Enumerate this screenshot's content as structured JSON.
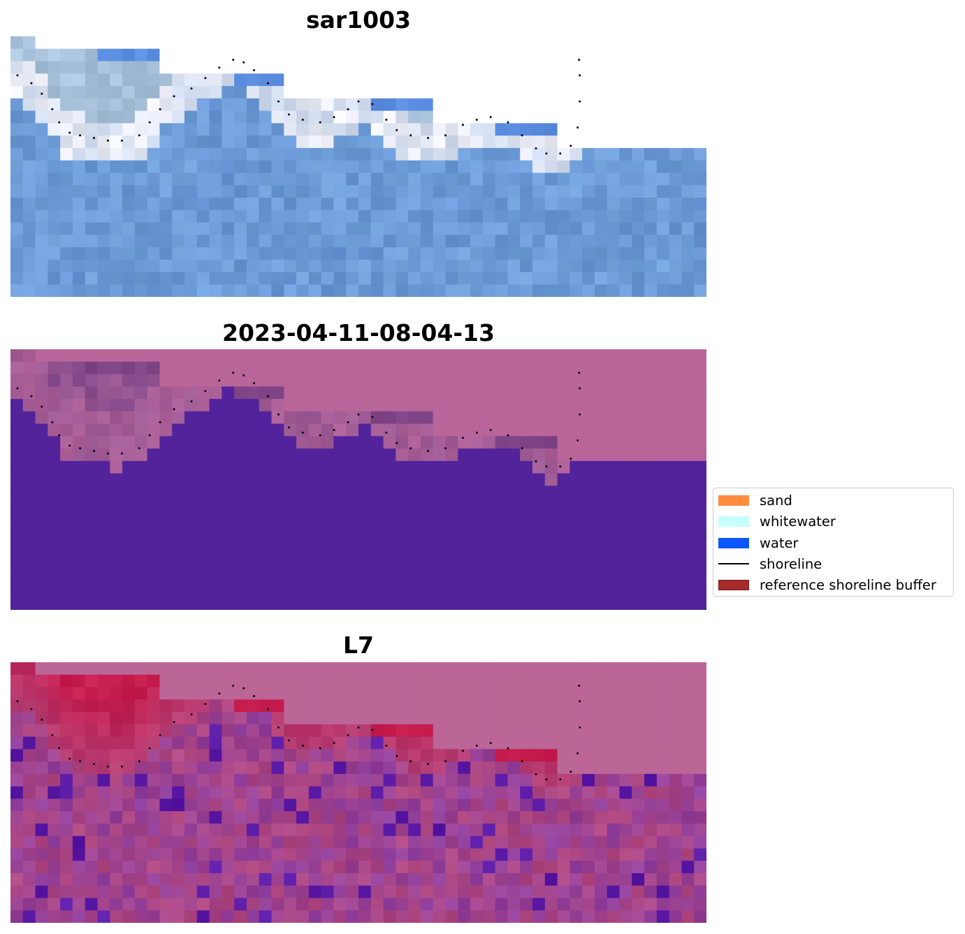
{
  "chart_data": [
    {
      "type": "heatmap",
      "title": "sar1003",
      "layer": "rgb-image",
      "palette": {
        "sky": "#a8c2db",
        "pale": "#c9d6ea",
        "white": "#f3f3fb",
        "water": "#6f9fd8",
        "deep": "#6a97d6",
        "bright_blue": "#5b8ee0",
        "nodata": "#ffffff"
      }
    },
    {
      "type": "heatmap",
      "title": "2023-04-11-08-04-13",
      "layer": "classification-overlay",
      "palette": {
        "land": "#b9659a",
        "mixed": "#9c5a94",
        "dark": "#7f4587",
        "water": "#52239b"
      }
    },
    {
      "type": "heatmap",
      "title": "L7",
      "layer": "index-overlay",
      "palette": {
        "top": "#bc6597",
        "red": "#c41d4e",
        "magenta": "#b1487f",
        "purple": "#8f3f9e",
        "violet": "#5a1aa6"
      }
    }
  ],
  "shoreline": {
    "color": "#000000",
    "points": [
      [
        0.01,
        0.15
      ],
      [
        0.03,
        0.18
      ],
      [
        0.045,
        0.22
      ],
      [
        0.06,
        0.28
      ],
      [
        0.07,
        0.33
      ],
      [
        0.085,
        0.37
      ],
      [
        0.1,
        0.38
      ],
      [
        0.12,
        0.39
      ],
      [
        0.14,
        0.4
      ],
      [
        0.16,
        0.4
      ],
      [
        0.185,
        0.38
      ],
      [
        0.2,
        0.33
      ],
      [
        0.215,
        0.28
      ],
      [
        0.235,
        0.23
      ],
      [
        0.26,
        0.2
      ],
      [
        0.28,
        0.16
      ],
      [
        0.3,
        0.12
      ],
      [
        0.32,
        0.09
      ],
      [
        0.335,
        0.1
      ],
      [
        0.35,
        0.13
      ],
      [
        0.37,
        0.18
      ],
      [
        0.385,
        0.25
      ],
      [
        0.4,
        0.3
      ],
      [
        0.42,
        0.32
      ],
      [
        0.445,
        0.33
      ],
      [
        0.465,
        0.31
      ],
      [
        0.485,
        0.28
      ],
      [
        0.5,
        0.25
      ],
      [
        0.52,
        0.26
      ],
      [
        0.54,
        0.32
      ],
      [
        0.555,
        0.36
      ],
      [
        0.575,
        0.38
      ],
      [
        0.6,
        0.39
      ],
      [
        0.625,
        0.38
      ],
      [
        0.65,
        0.34
      ],
      [
        0.67,
        0.32
      ],
      [
        0.69,
        0.31
      ],
      [
        0.715,
        0.33
      ],
      [
        0.735,
        0.38
      ],
      [
        0.755,
        0.43
      ],
      [
        0.77,
        0.45
      ],
      [
        0.79,
        0.45
      ],
      [
        0.805,
        0.42
      ],
      [
        0.815,
        0.35
      ],
      [
        0.818,
        0.25
      ],
      [
        0.818,
        0.15
      ],
      [
        0.817,
        0.09
      ]
    ]
  },
  "legend": {
    "items": [
      {
        "label": "sand",
        "color": "#ff8c3c",
        "kind": "patch"
      },
      {
        "label": "whitewater",
        "color": "#c7fefe",
        "kind": "patch"
      },
      {
        "label": "water",
        "color": "#0b57fb",
        "kind": "patch"
      },
      {
        "label": "shoreline",
        "color": "#000000",
        "kind": "line"
      },
      {
        "label": "reference shoreline buffer",
        "color": "#a52a2a",
        "kind": "patch"
      }
    ]
  }
}
